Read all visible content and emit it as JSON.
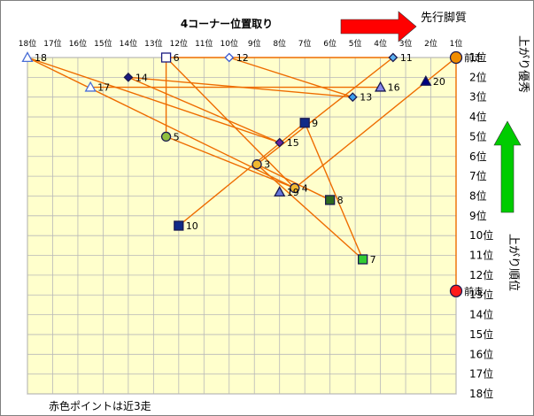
{
  "chart_data": {
    "type": "scatter",
    "title": "4コーナー位置取り",
    "x_ticks": [
      "18位",
      "17位",
      "16位",
      "15位",
      "14位",
      "13位",
      "12位",
      "11位",
      "10位",
      "9位",
      "8位",
      "7位",
      "6位",
      "5位",
      "4位",
      "3位",
      "2位",
      "1位"
    ],
    "y_ticks": [
      "1位",
      "2位",
      "3位",
      "4位",
      "5位",
      "6位",
      "7位",
      "8位",
      "9位",
      "10位",
      "11位",
      "12位",
      "13位",
      "14位",
      "15位",
      "16位",
      "17位",
      "18位"
    ],
    "xlim": [
      18,
      1
    ],
    "ylim": [
      1,
      18
    ],
    "x_axis_note": "先行脚質",
    "y_axis_top_note": "上がり優秀",
    "y_axis_bottom_note": "上がり順位",
    "footnote": "赤色ポイントは近3走",
    "grid": true,
    "points": [
      {
        "label": "18",
        "x": 18,
        "y": 1,
        "marker": "triangle-open",
        "color": "#4a6fd6"
      },
      {
        "label": "17",
        "x": 15.5,
        "y": 2.5,
        "marker": "triangle-open",
        "color": "#4a6fd6"
      },
      {
        "label": "14",
        "x": 14,
        "y": 2,
        "marker": "diamond",
        "color": "#1a1a80"
      },
      {
        "label": "6",
        "x": 12.5,
        "y": 1,
        "marker": "square-open",
        "color": "#1a1a80"
      },
      {
        "label": "12",
        "x": 10,
        "y": 1,
        "marker": "diamond-open",
        "color": "#3a5ad0"
      },
      {
        "label": "11",
        "x": 3.5,
        "y": 1,
        "marker": "diamond",
        "color": "#5ab0f0"
      },
      {
        "label": "前走",
        "x": 1,
        "y": 1,
        "marker": "circle",
        "color": "#f08c00"
      },
      {
        "label": "20",
        "x": 2.2,
        "y": 2.2,
        "marker": "triangle",
        "color": "#000080"
      },
      {
        "label": "16",
        "x": 4,
        "y": 2.5,
        "marker": "triangle",
        "color": "#8888ee"
      },
      {
        "label": "13",
        "x": 5.1,
        "y": 3,
        "marker": "diamond",
        "color": "#3ca0ee"
      },
      {
        "label": "9",
        "x": 7,
        "y": 4.3,
        "marker": "square",
        "color": "#102a88"
      },
      {
        "label": "5",
        "x": 12.5,
        "y": 5,
        "marker": "circle",
        "color": "#90c040"
      },
      {
        "label": "15",
        "x": 8,
        "y": 5.3,
        "marker": "diamond",
        "color": "#6a22a0"
      },
      {
        "label": "3",
        "x": 8.9,
        "y": 6.4,
        "marker": "circle",
        "color": "#f0b830"
      },
      {
        "label": "4",
        "x": 7.4,
        "y": 7.6,
        "marker": "circle",
        "color": "#f0b830"
      },
      {
        "label": "19",
        "x": 8,
        "y": 7.8,
        "marker": "triangle",
        "color": "#6677dd"
      },
      {
        "label": "8",
        "x": 6,
        "y": 8.2,
        "marker": "square",
        "color": "#2e6b1e"
      },
      {
        "label": "10",
        "x": 12,
        "y": 9.5,
        "marker": "square",
        "color": "#102a88"
      },
      {
        "label": "7",
        "x": 4.7,
        "y": 11.2,
        "marker": "square",
        "color": "#33cc33"
      },
      {
        "label": "前走",
        "x": 1,
        "y": 12.8,
        "marker": "circle",
        "color": "#ff1a1a"
      }
    ],
    "connections": [
      [
        18,
        1,
        8,
        5.3
      ],
      [
        18,
        1,
        7.4,
        7.6
      ],
      [
        15.5,
        2.5,
        4,
        2.5
      ],
      [
        14,
        2,
        8,
        5.3
      ],
      [
        14,
        2,
        5.1,
        3
      ],
      [
        12.5,
        1,
        12.5,
        5
      ],
      [
        12.5,
        1,
        3.5,
        1
      ],
      [
        12.5,
        1,
        7.4,
        7.6
      ],
      [
        10,
        1,
        5.1,
        3
      ],
      [
        3.5,
        1,
        8.9,
        6.4
      ],
      [
        1,
        1,
        1,
        12.8
      ],
      [
        1,
        1,
        7.4,
        7.6
      ],
      [
        12.5,
        5,
        7.4,
        7.6
      ],
      [
        12,
        9.5,
        7,
        4.3
      ],
      [
        7,
        4.3,
        4.7,
        11.2
      ],
      [
        8.9,
        6.4,
        4.7,
        11.2
      ],
      [
        8.9,
        6.4,
        6,
        8.2
      ]
    ]
  },
  "colors": {
    "plot_bg": "#ffffcc",
    "connector": "#ee6c00",
    "red_arrow": "#ff0000",
    "green_arrow": "#00cc00"
  }
}
